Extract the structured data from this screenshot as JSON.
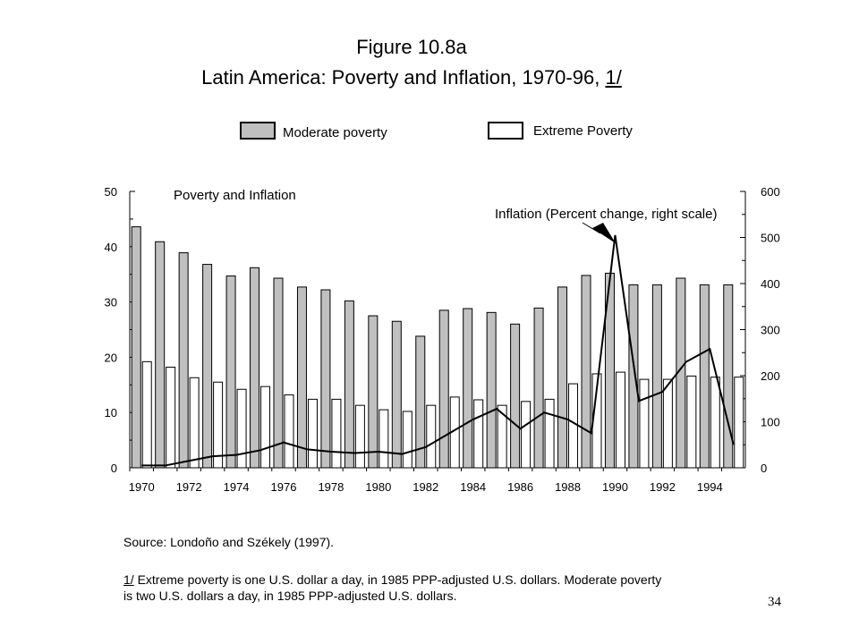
{
  "header": {
    "figure_label": "Figure 10.8a",
    "subtitle_main": "Latin America: Poverty and Inflation, 1970-96, ",
    "subtitle_note": "1/"
  },
  "legend": {
    "moderate": "Moderate poverty",
    "extreme": "Extreme Poverty",
    "moderate_color": "#c0c0c0",
    "extreme_color": "#ffffff"
  },
  "chart_data": {
    "type": "bar",
    "title": "Poverty and Inflation",
    "x": [
      1970,
      1971,
      1972,
      1973,
      1974,
      1975,
      1976,
      1977,
      1978,
      1979,
      1980,
      1981,
      1982,
      1983,
      1984,
      1985,
      1986,
      1987,
      1988,
      1989,
      1990,
      1991,
      1992,
      1993,
      1994,
      1995
    ],
    "x_tick_labels": [
      "1970",
      "1972",
      "1974",
      "1976",
      "1978",
      "1980",
      "1982",
      "1984",
      "1986",
      "1988",
      "1990",
      "1992",
      "1994"
    ],
    "left_axis": {
      "ylim": [
        0,
        50
      ],
      "ticks": [
        "0",
        "10",
        "20",
        "30",
        "40",
        "50"
      ]
    },
    "right_axis": {
      "ylim": [
        0,
        600
      ],
      "ticks": [
        "0",
        "100",
        "200",
        "300",
        "400",
        "500",
        "600"
      ]
    },
    "series": [
      {
        "name": "Moderate poverty",
        "axis": "left",
        "kind": "bar",
        "values": [
          43.6,
          40.9,
          38.9,
          36.8,
          34.7,
          36.2,
          34.3,
          32.7,
          32.2,
          30.2,
          27.5,
          26.5,
          23.8,
          28.5,
          28.8,
          28.1,
          26.0,
          28.9,
          32.7,
          34.8,
          35.2,
          33.1,
          33.1,
          34.3,
          33.1,
          33.1
        ]
      },
      {
        "name": "Extreme Poverty",
        "axis": "left",
        "kind": "bar",
        "values": [
          19.2,
          18.2,
          16.3,
          15.5,
          14.2,
          14.7,
          13.2,
          12.4,
          12.4,
          11.3,
          10.5,
          10.2,
          11.3,
          12.8,
          12.3,
          11.3,
          12.0,
          12.4,
          15.2,
          17.0,
          17.3,
          16.0,
          16.0,
          16.6,
          16.4,
          16.4
        ]
      },
      {
        "name": "Inflation (Percent change, right scale)",
        "axis": "right",
        "kind": "line",
        "values": [
          5,
          5,
          15,
          25,
          28,
          38,
          55,
          40,
          35,
          32,
          35,
          30,
          45,
          75,
          105,
          128,
          85,
          120,
          105,
          75,
          505,
          145,
          165,
          230,
          258,
          50
        ]
      }
    ],
    "annotation": "Inflation (Percent change, right scale)"
  },
  "footer": {
    "source": "Source:  Londoño and Székely (1997).",
    "note_marker": "1/",
    "note_line1": "  Extreme poverty is one U.S. dollar a day, in 1985 PPP-adjusted U.S. dollars.  Moderate  poverty",
    "note_line2": "is two U.S. dollars a day, in 1985 PPP-adjusted U.S. dollars.",
    "page_number": "34"
  }
}
